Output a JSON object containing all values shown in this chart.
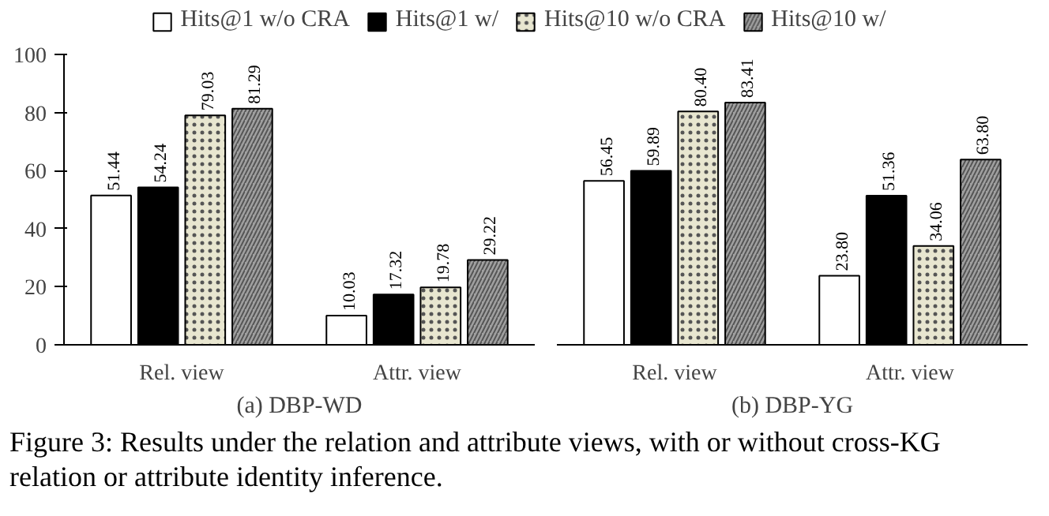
{
  "chart_data": [
    {
      "type": "bar",
      "xlabel": "(a) DBP-WD",
      "categories": [
        "Rel. view",
        "Attr. view"
      ],
      "ylim": [
        0,
        100
      ],
      "yticks": [
        0,
        20,
        40,
        60,
        80,
        100
      ],
      "legend": "top",
      "data_labels": true,
      "series": [
        {
          "name": "Hits@1 w/o CRA",
          "color": "#ffffff",
          "values": [
            51.44,
            10.03
          ]
        },
        {
          "name": "Hits@1 w/",
          "color": "#000000",
          "values": [
            54.24,
            17.32
          ]
        },
        {
          "name": "Hits@10 w/o CRA",
          "color": "#e8e6d0",
          "values": [
            79.03,
            19.78
          ]
        },
        {
          "name": "Hits@10 w/",
          "color": "#a0a0a0",
          "values": [
            81.29,
            29.22
          ]
        }
      ],
      "annotations": [
        "Figure 3: Results under the relation and attribute views, with or without cross-KG relation or attribute identity inference."
      ]
    },
    {
      "type": "bar",
      "xlabel": "(b) DBP-YG",
      "categories": [
        "Rel. view",
        "Attr. view"
      ],
      "ylim": [
        0,
        100
      ],
      "yticks": [
        0,
        20,
        40,
        60,
        80,
        100
      ],
      "tick_labels": "x",
      "series": [
        {
          "color": "#ffffff",
          "values": [
            56.45,
            23.8
          ],
          "value_labels": [
            "56.45",
            "23.80"
          ]
        },
        {
          "color": "#000000",
          "values": [
            59.89,
            51.36
          ],
          "value_labels": [
            "59.89",
            "51.36"
          ]
        },
        {
          "color": "#e8e6d0",
          "values": [
            80.4,
            34.06
          ],
          "value_labels": [
            "80.40",
            "34.06"
          ]
        },
        {
          "color": "#a0a0a0",
          "values": [
            83.41,
            63.8
          ],
          "value_labels": [
            "83.41",
            "63.80"
          ]
        }
      ]
    }
  ]
}
